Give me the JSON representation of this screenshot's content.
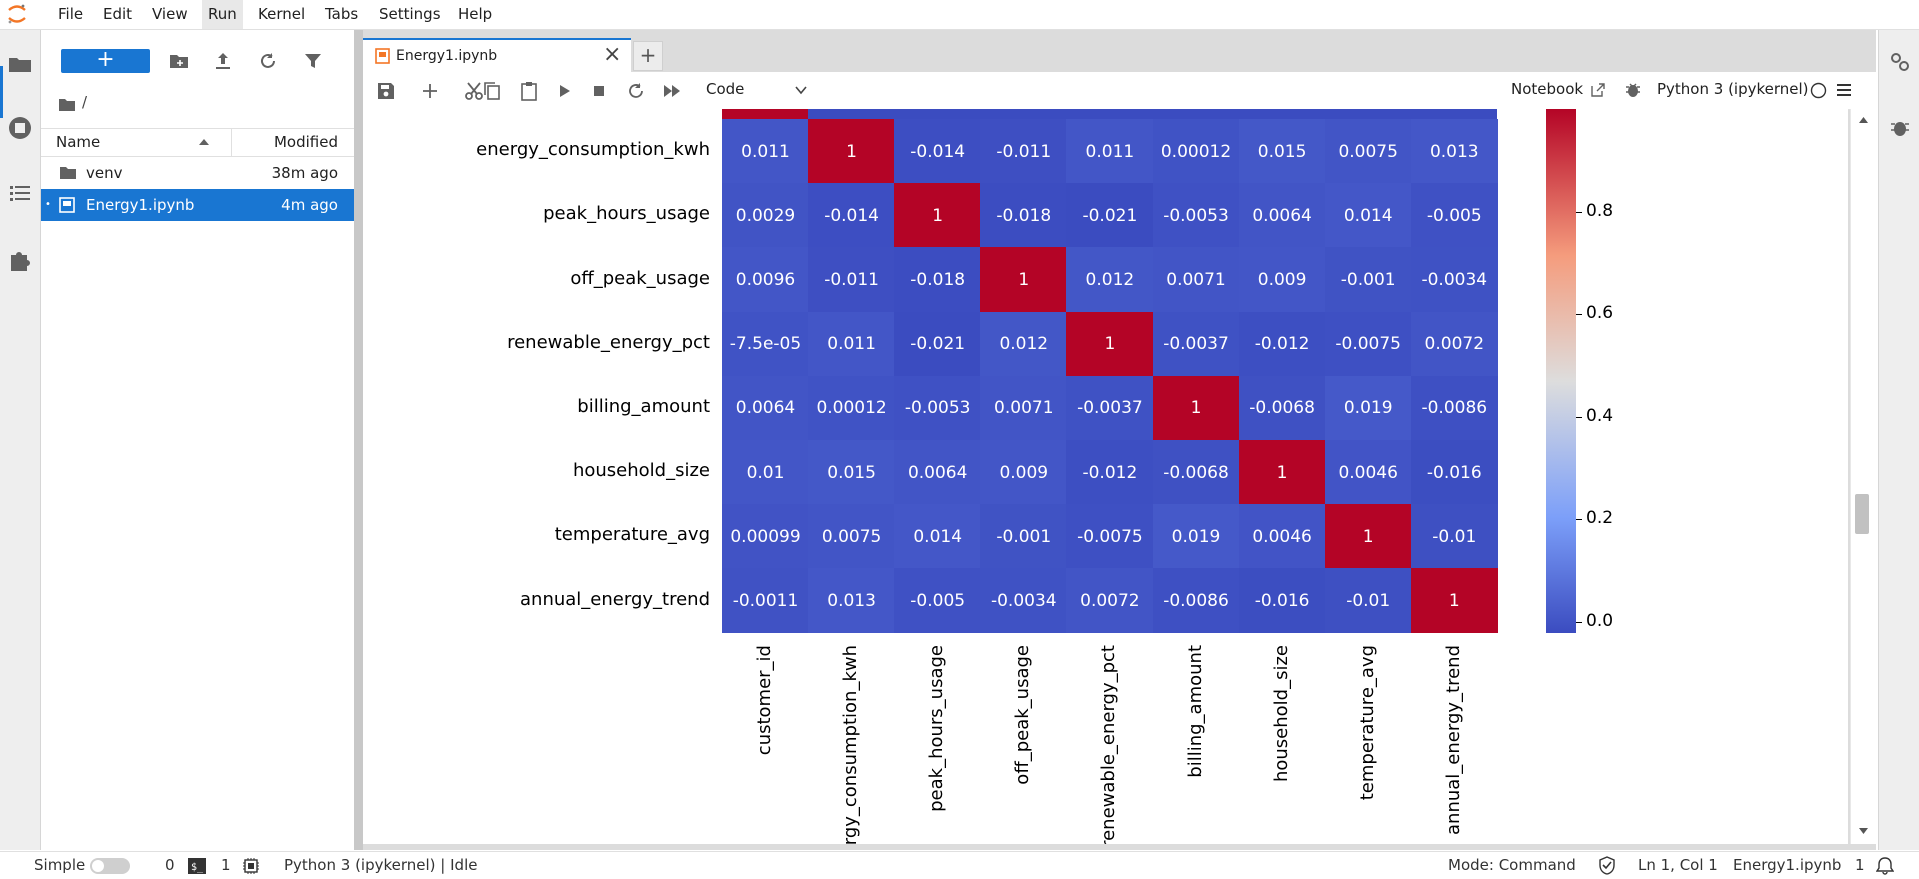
{
  "menu": [
    "File",
    "Edit",
    "View",
    "Run",
    "Kernel",
    "Tabs",
    "Settings",
    "Help"
  ],
  "menu_active": "Run",
  "filebrowser": {
    "new_label": "+",
    "breadcrumb": "/",
    "col_name": "Name",
    "col_modified": "Modified",
    "rows": [
      {
        "name": "venv",
        "modified": "38m ago",
        "kind": "folder"
      },
      {
        "name": "Energy1.ipynb",
        "modified": "4m ago",
        "kind": "notebook",
        "selected": true
      }
    ]
  },
  "tab": {
    "title": "Energy1.ipynb",
    "close": "×",
    "add": "+"
  },
  "toolbar": {
    "cell_type": "Code",
    "notebook_label": "Notebook",
    "kernel": "Python 3 (ipykernel)"
  },
  "status": {
    "mode_label": "Simple",
    "terminals": "0",
    "kernels": "1",
    "kernel_status": "Python 3 (ipykernel) | Idle",
    "command_mode": "Mode: Command",
    "cursor": "Ln 1, Col 1",
    "file": "Energy1.ipynb",
    "notifications": "1"
  },
  "colors": {
    "accent": "#1976d2",
    "cold": "#3b4cc0",
    "hot": "#b40426",
    "mid": "#dddddd"
  },
  "chart_data": {
    "type": "heatmap",
    "row_labels": [
      "energy_consumption_kwh",
      "peak_hours_usage",
      "off_peak_usage",
      "renewable_energy_pct",
      "billing_amount",
      "household_size",
      "temperature_avg",
      "annual_energy_trend"
    ],
    "col_labels": [
      "customer_id",
      "rgy_consumption_kwh",
      "peak_hours_usage",
      "off_peak_usage",
      "renewable_energy_pct",
      "billing_amount",
      "household_size",
      "temperature_avg",
      "annual_energy_trend"
    ],
    "values": [
      [
        0.011,
        1,
        -0.014,
        -0.011,
        0.011,
        0.00012,
        0.015,
        0.0075,
        0.013
      ],
      [
        0.0029,
        -0.014,
        1,
        -0.018,
        -0.021,
        -0.0053,
        0.0064,
        0.014,
        -0.005
      ],
      [
        0.0096,
        -0.011,
        -0.018,
        1,
        0.012,
        0.0071,
        0.009,
        -0.001,
        -0.0034
      ],
      [
        -7.5e-05,
        0.011,
        -0.021,
        0.012,
        1,
        -0.0037,
        -0.012,
        -0.0075,
        0.0072
      ],
      [
        0.0064,
        0.00012,
        -0.0053,
        0.0071,
        -0.0037,
        1,
        -0.0068,
        0.019,
        -0.0086
      ],
      [
        0.01,
        0.015,
        0.0064,
        0.009,
        -0.012,
        -0.0068,
        1,
        0.0046,
        -0.016
      ],
      [
        0.00099,
        0.0075,
        0.014,
        -0.001,
        -0.0075,
        0.019,
        0.0046,
        1,
        -0.01
      ],
      [
        -0.0011,
        0.013,
        -0.005,
        -0.0034,
        0.0072,
        -0.0086,
        -0.016,
        -0.01,
        1
      ]
    ],
    "labels": [
      [
        "0.011",
        "1",
        "-0.014",
        "-0.011",
        "0.011",
        "0.00012",
        "0.015",
        "0.0075",
        "0.013"
      ],
      [
        "0.0029",
        "-0.014",
        "1",
        "-0.018",
        "-0.021",
        "-0.0053",
        "0.0064",
        "0.014",
        "-0.005"
      ],
      [
        "0.0096",
        "-0.011",
        "-0.018",
        "1",
        "0.012",
        "0.0071",
        "0.009",
        "-0.001",
        "-0.0034"
      ],
      [
        "-7.5e-05",
        "0.011",
        "-0.021",
        "0.012",
        "1",
        "-0.0037",
        "-0.012",
        "-0.0075",
        "0.0072"
      ],
      [
        "0.0064",
        "0.00012",
        "-0.0053",
        "0.0071",
        "-0.0037",
        "1",
        "-0.0068",
        "0.019",
        "-0.0086"
      ],
      [
        "0.01",
        "0.015",
        "0.0064",
        "0.009",
        "-0.012",
        "-0.0068",
        "1",
        "0.0046",
        "-0.016"
      ],
      [
        "0.00099",
        "0.0075",
        "0.014",
        "-0.001",
        "-0.0075",
        "0.019",
        "0.0046",
        "1",
        "-0.01"
      ],
      [
        "-0.0011",
        "0.013",
        "-0.005",
        "-0.0034",
        "0.0072",
        "-0.0086",
        "-0.016",
        "-0.01",
        "1"
      ]
    ],
    "colormap": "coolwarm",
    "colorbar_ticks": [
      "0.0",
      "0.2",
      "0.4",
      "0.6",
      "0.8"
    ],
    "colorbar_range": [
      -0.021,
      1
    ]
  }
}
